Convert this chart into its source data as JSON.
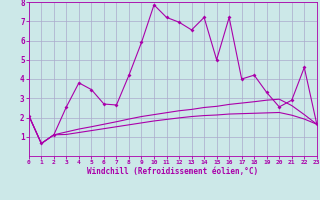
{
  "title": "",
  "xlabel": "Windchill (Refroidissement éolien,°C)",
  "ylabel": "",
  "background_color": "#cce8e8",
  "grid_color": "#aaaacc",
  "line_color": "#aa00aa",
  "xlim": [
    0,
    23
  ],
  "ylim": [
    0,
    8
  ],
  "xticks": [
    0,
    1,
    2,
    3,
    4,
    5,
    6,
    7,
    8,
    9,
    10,
    11,
    12,
    13,
    14,
    15,
    16,
    17,
    18,
    19,
    20,
    21,
    22,
    23
  ],
  "yticks": [
    1,
    2,
    3,
    4,
    5,
    6,
    7,
    8
  ],
  "series1_x": [
    0,
    1,
    2,
    3,
    4,
    5,
    6,
    7,
    8,
    9,
    10,
    11,
    12,
    13,
    14,
    15,
    16,
    17,
    18,
    19,
    20,
    21,
    22,
    23
  ],
  "series1_y": [
    2.1,
    0.65,
    1.1,
    2.55,
    3.8,
    3.45,
    2.7,
    2.65,
    4.2,
    5.9,
    7.85,
    7.2,
    6.95,
    6.55,
    7.2,
    5.0,
    7.2,
    4.0,
    4.2,
    3.3,
    2.55,
    2.9,
    4.6,
    1.65
  ],
  "series2_x": [
    0,
    1,
    2,
    3,
    4,
    5,
    6,
    7,
    8,
    9,
    10,
    11,
    12,
    13,
    14,
    15,
    16,
    17,
    18,
    19,
    20,
    21,
    22,
    23
  ],
  "series2_y": [
    2.1,
    0.65,
    1.1,
    1.25,
    1.4,
    1.52,
    1.65,
    1.78,
    1.92,
    2.05,
    2.15,
    2.25,
    2.35,
    2.42,
    2.52,
    2.58,
    2.68,
    2.75,
    2.82,
    2.9,
    2.95,
    2.62,
    2.15,
    1.65
  ],
  "series3_x": [
    0,
    1,
    2,
    3,
    4,
    5,
    6,
    7,
    8,
    9,
    10,
    11,
    12,
    13,
    14,
    15,
    16,
    17,
    18,
    19,
    20,
    21,
    22,
    23
  ],
  "series3_y": [
    2.1,
    0.65,
    1.1,
    1.12,
    1.22,
    1.32,
    1.42,
    1.52,
    1.62,
    1.72,
    1.82,
    1.9,
    1.98,
    2.05,
    2.1,
    2.13,
    2.18,
    2.2,
    2.22,
    2.24,
    2.26,
    2.12,
    1.92,
    1.65
  ]
}
